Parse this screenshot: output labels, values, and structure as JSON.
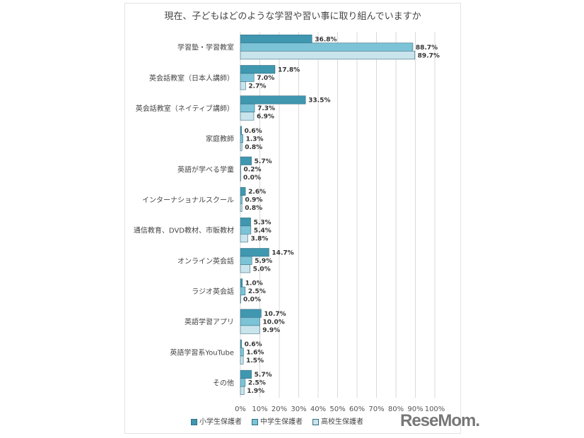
{
  "chart_data": {
    "type": "bar",
    "orientation": "horizontal",
    "title": "現在、子どもはどのような学習や習い事に取り組んでいますか",
    "categories": [
      "学習塾・学習教室",
      "英会話教室（日本人講師）",
      "英会話教室（ネイティブ講師）",
      "家庭教師",
      "英語が学べる学童",
      "インターナショナルスクール",
      "通信教育、DVD教材、市販教材",
      "オンライン英会話",
      "ラジオ英会話",
      "英語学習アプリ",
      "英語学習系YouTube",
      "その他"
    ],
    "series": [
      {
        "name": "小学生保護者",
        "color": "#3f97b0",
        "values": [
          36.8,
          17.8,
          33.5,
          0.6,
          5.7,
          2.6,
          5.3,
          14.7,
          1.0,
          10.7,
          0.6,
          5.7
        ]
      },
      {
        "name": "中学生保護者",
        "color": "#7cc3d7",
        "values": [
          88.7,
          7.0,
          7.3,
          1.3,
          0.2,
          0.9,
          5.4,
          5.9,
          2.5,
          10.0,
          1.6,
          2.5
        ]
      },
      {
        "name": "高校生保護者",
        "color": "#c9e4ec",
        "values": [
          89.7,
          2.7,
          6.9,
          0.8,
          0.0,
          0.8,
          3.8,
          5.0,
          0.0,
          9.9,
          1.5,
          1.9
        ]
      }
    ],
    "xlim": [
      0,
      100
    ],
    "xticks": [
      "0%",
      "10%",
      "20%",
      "30%",
      "40%",
      "50%",
      "60%",
      "70%",
      "80%",
      "90%",
      "100%"
    ],
    "grid": true,
    "legend_placement": "bottom"
  },
  "logo": "ReseMom"
}
